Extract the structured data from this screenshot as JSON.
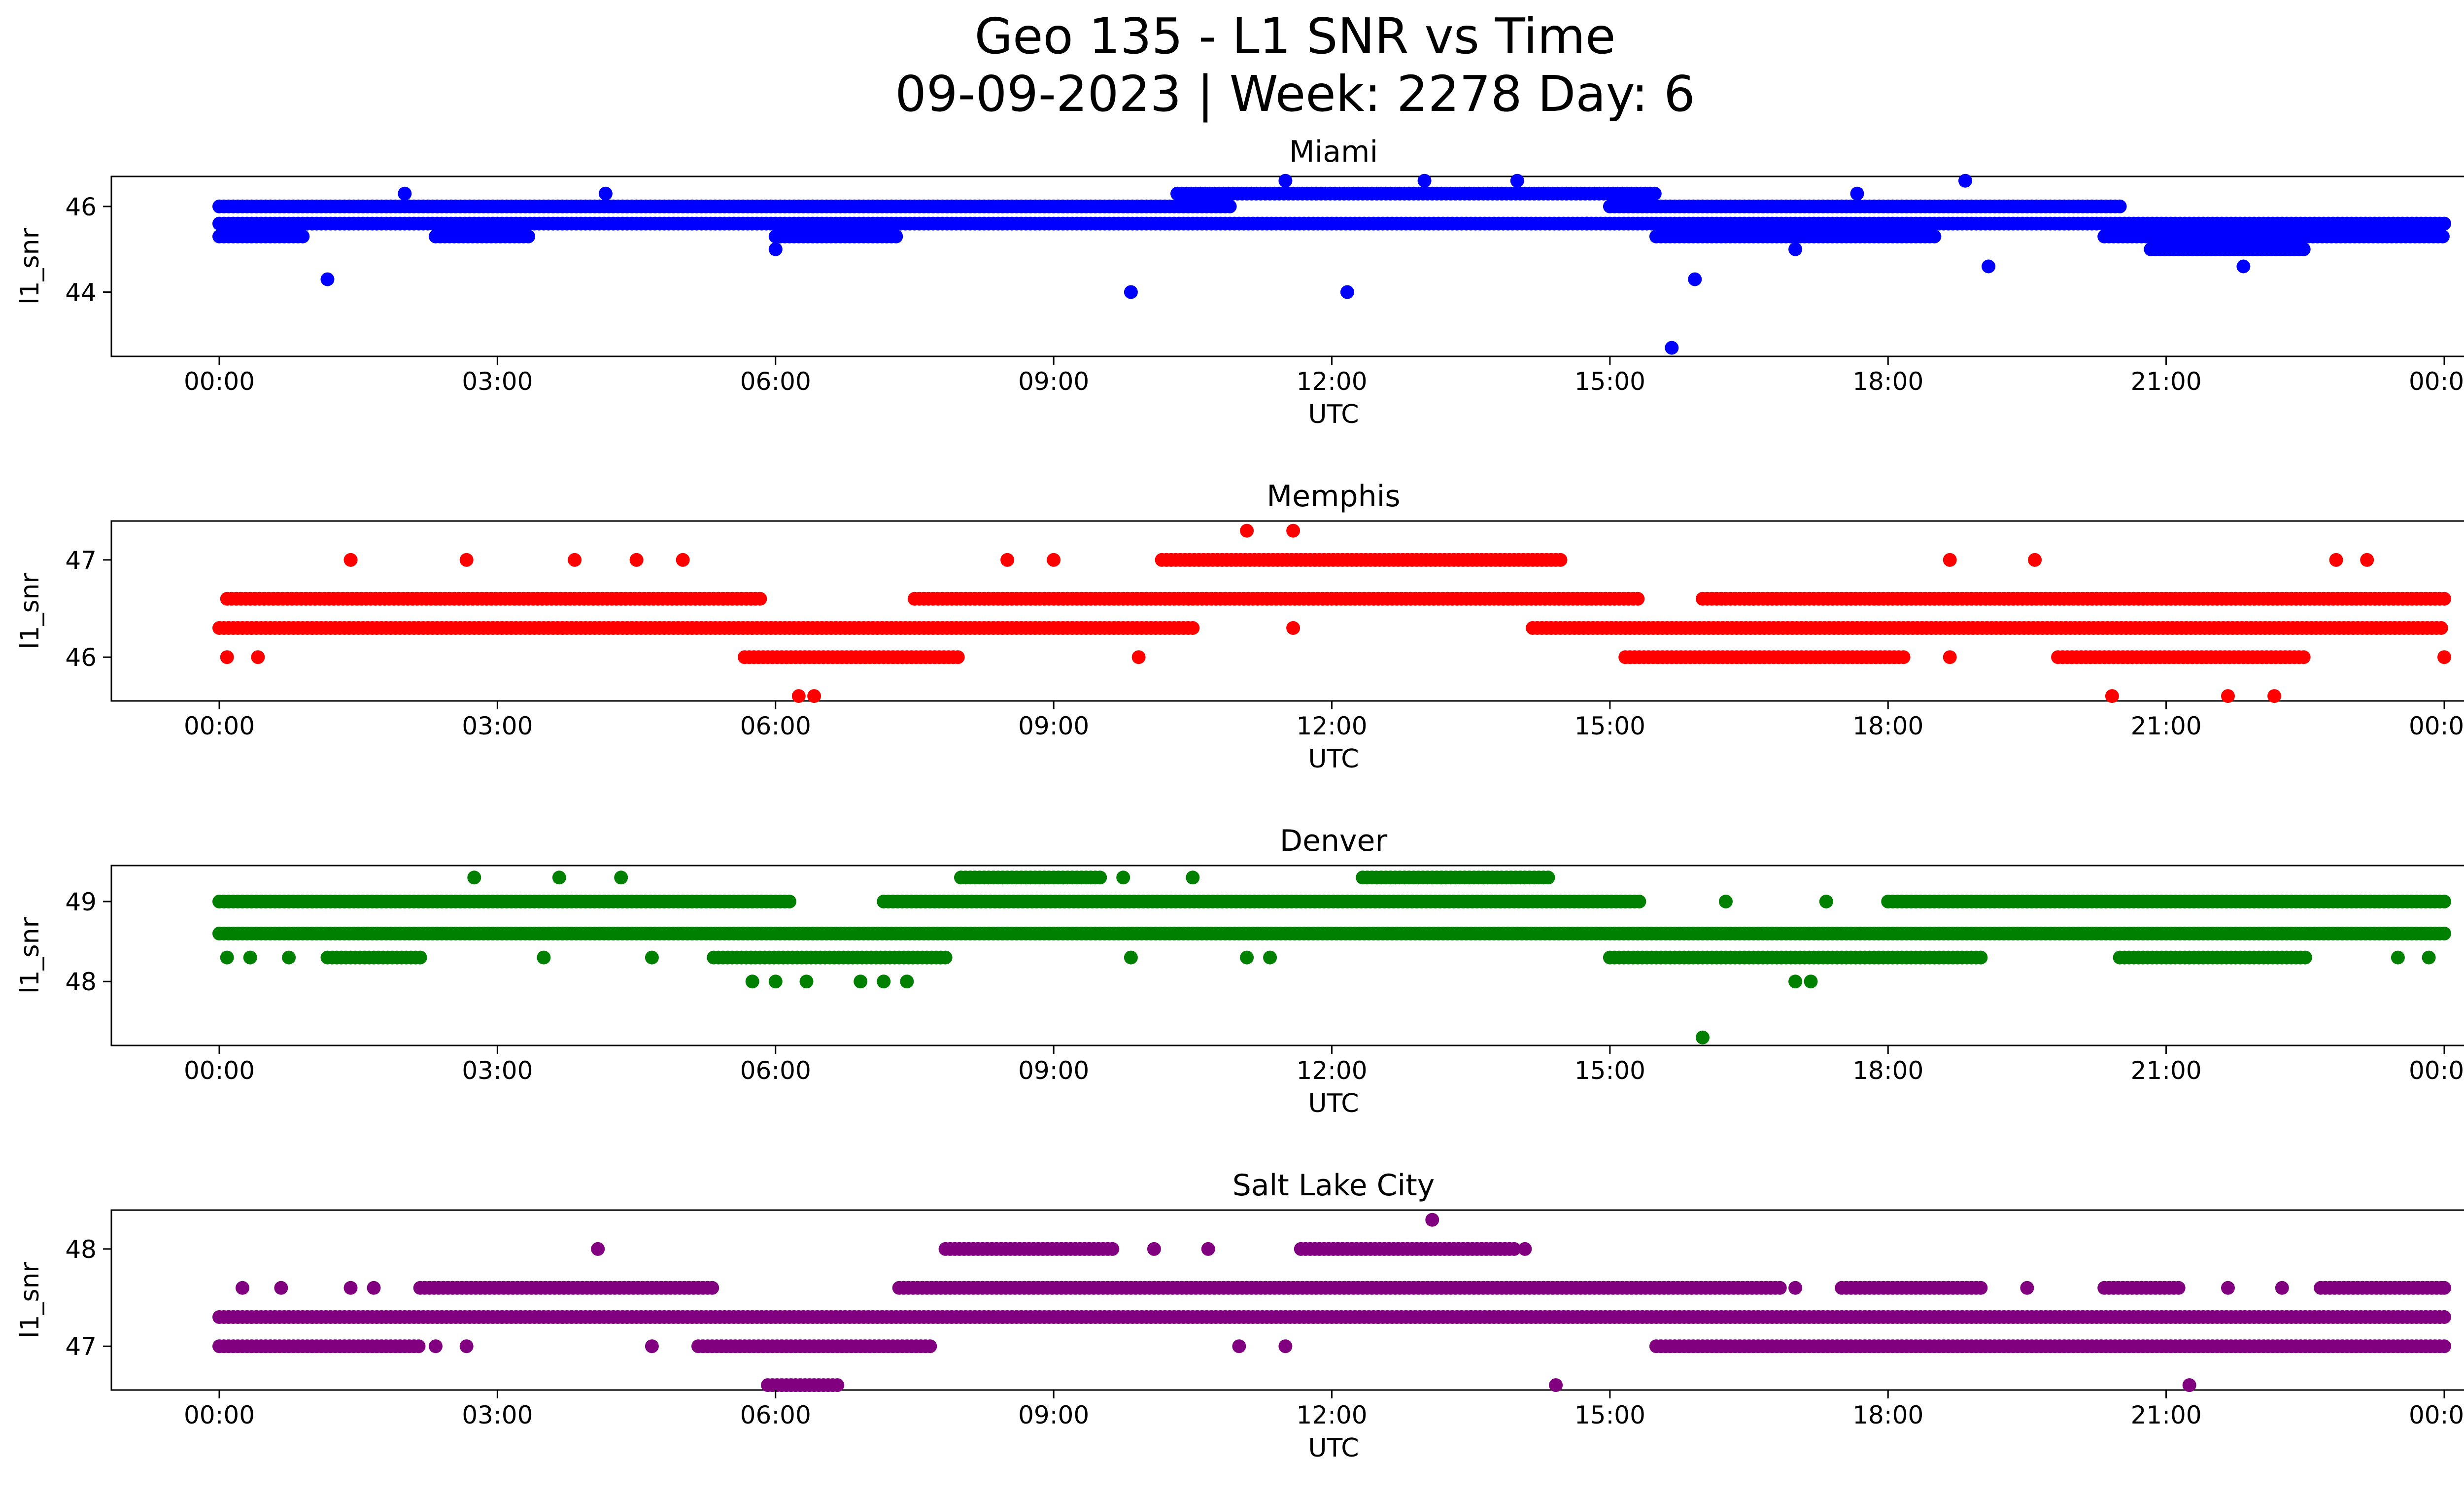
{
  "figure": {
    "title_line1": "Geo 135 - L1 SNR vs Time",
    "title_line2": "09-09-2023 | Week: 2278 Day: 6"
  },
  "chart_data": [
    {
      "type": "scatter",
      "title": "Miami",
      "xlabel": "UTC",
      "ylabel": "l1_snr",
      "color": "#0000ff",
      "xlim": [
        "00:00",
        "24:00"
      ],
      "ylim": [
        42.5,
        46.7
      ],
      "yticks": [
        44,
        46
      ],
      "xticks": [
        "00:00",
        "03:00",
        "06:00",
        "09:00",
        "12:00",
        "15:00",
        "18:00",
        "21:00",
        "00:00"
      ],
      "bands": [
        {
          "y": 45.6,
          "start": "00:00",
          "end": "24:00"
        },
        {
          "y": 46.0,
          "start": "00:00",
          "end": "10:55"
        },
        {
          "y": 46.0,
          "start": "15:00",
          "end": "20:30"
        },
        {
          "y": 46.3,
          "start": "10:20",
          "end": "15:30"
        },
        {
          "y": 45.3,
          "start": "00:00",
          "end": "00:55"
        },
        {
          "y": 45.3,
          "start": "02:20",
          "end": "03:20"
        },
        {
          "y": 45.3,
          "start": "06:00",
          "end": "07:20"
        },
        {
          "y": 45.3,
          "start": "15:30",
          "end": "18:30"
        },
        {
          "y": 45.3,
          "start": "20:20",
          "end": "24:00"
        },
        {
          "y": 45.0,
          "start": "20:50",
          "end": "22:30"
        }
      ],
      "points": [
        {
          "x": "01:10",
          "y": 44.3
        },
        {
          "x": "09:50",
          "y": 44.0
        },
        {
          "x": "12:10",
          "y": 44.0
        },
        {
          "x": "15:40",
          "y": 42.7
        },
        {
          "x": "15:55",
          "y": 44.3
        },
        {
          "x": "19:05",
          "y": 44.6
        },
        {
          "x": "21:50",
          "y": 44.6
        },
        {
          "x": "11:30",
          "y": 46.6
        },
        {
          "x": "13:00",
          "y": 46.6
        },
        {
          "x": "14:00",
          "y": 46.6
        },
        {
          "x": "18:50",
          "y": 46.6
        },
        {
          "x": "02:00",
          "y": 46.3
        },
        {
          "x": "04:10",
          "y": 46.3
        },
        {
          "x": "17:40",
          "y": 46.3
        },
        {
          "x": "06:00",
          "y": 45.0
        },
        {
          "x": "17:00",
          "y": 45.0
        },
        {
          "x": "14:45",
          "y": 45.6
        }
      ]
    },
    {
      "type": "scatter",
      "title": "Memphis",
      "xlabel": "UTC",
      "ylabel": "l1_snr",
      "color": "#ff0000",
      "xlim": [
        "00:00",
        "24:00"
      ],
      "ylim": [
        45.55,
        47.4
      ],
      "yticks": [
        46,
        47
      ],
      "xticks": [
        "00:00",
        "03:00",
        "06:00",
        "09:00",
        "12:00",
        "15:00",
        "18:00",
        "21:00",
        "00:00"
      ],
      "bands": [
        {
          "y": 46.3,
          "start": "00:00",
          "end": "10:30"
        },
        {
          "y": 46.3,
          "start": "14:10",
          "end": "24:00"
        },
        {
          "y": 46.6,
          "start": "00:05",
          "end": "05:50"
        },
        {
          "y": 46.6,
          "start": "07:30",
          "end": "15:20"
        },
        {
          "y": 46.6,
          "start": "16:00",
          "end": "24:00"
        },
        {
          "y": 47.0,
          "start": "10:10",
          "end": "14:30"
        },
        {
          "y": 46.0,
          "start": "05:40",
          "end": "08:00"
        },
        {
          "y": 46.0,
          "start": "15:10",
          "end": "18:10"
        },
        {
          "y": 46.0,
          "start": "19:50",
          "end": "22:30"
        }
      ],
      "points": [
        {
          "x": "00:05",
          "y": 46.0
        },
        {
          "x": "00:25",
          "y": 46.0
        },
        {
          "x": "01:25",
          "y": 47.0
        },
        {
          "x": "02:40",
          "y": 47.0
        },
        {
          "x": "03:50",
          "y": 47.0
        },
        {
          "x": "04:30",
          "y": 47.0
        },
        {
          "x": "05:00",
          "y": 47.0
        },
        {
          "x": "08:30",
          "y": 47.0
        },
        {
          "x": "09:00",
          "y": 47.0
        },
        {
          "x": "09:55",
          "y": 46.0
        },
        {
          "x": "11:05",
          "y": 47.3
        },
        {
          "x": "11:35",
          "y": 47.3
        },
        {
          "x": "11:35",
          "y": 46.3
        },
        {
          "x": "06:15",
          "y": 45.6
        },
        {
          "x": "06:25",
          "y": 45.6
        },
        {
          "x": "18:40",
          "y": 47.0
        },
        {
          "x": "19:35",
          "y": 47.0
        },
        {
          "x": "20:25",
          "y": 45.6
        },
        {
          "x": "21:40",
          "y": 45.6
        },
        {
          "x": "22:10",
          "y": 45.6
        },
        {
          "x": "22:50",
          "y": 47.0
        },
        {
          "x": "23:10",
          "y": 47.0
        },
        {
          "x": "24:00",
          "y": 46.0
        },
        {
          "x": "18:40",
          "y": 46.0
        }
      ]
    },
    {
      "type": "scatter",
      "title": "Denver",
      "xlabel": "UTC",
      "ylabel": "l1_snr",
      "color": "#008000",
      "xlim": [
        "00:00",
        "24:00"
      ],
      "ylim": [
        47.2,
        49.45
      ],
      "yticks": [
        48,
        49
      ],
      "xticks": [
        "00:00",
        "03:00",
        "06:00",
        "09:00",
        "12:00",
        "15:00",
        "18:00",
        "21:00",
        "00:00"
      ],
      "bands": [
        {
          "y": 48.6,
          "start": "00:00",
          "end": "24:00"
        },
        {
          "y": 49.0,
          "start": "00:00",
          "end": "06:10"
        },
        {
          "y": 49.0,
          "start": "07:10",
          "end": "15:20"
        },
        {
          "y": 49.0,
          "start": "18:00",
          "end": "24:00"
        },
        {
          "y": 49.3,
          "start": "08:00",
          "end": "09:30"
        },
        {
          "y": 49.3,
          "start": "12:20",
          "end": "14:20"
        },
        {
          "y": 48.3,
          "start": "05:20",
          "end": "07:50"
        },
        {
          "y": 48.3,
          "start": "15:00",
          "end": "19:00"
        },
        {
          "y": 48.3,
          "start": "01:10",
          "end": "02:10"
        },
        {
          "y": 48.3,
          "start": "20:30",
          "end": "22:30"
        }
      ],
      "points": [
        {
          "x": "00:05",
          "y": 48.3
        },
        {
          "x": "00:20",
          "y": 48.3
        },
        {
          "x": "00:45",
          "y": 48.3
        },
        {
          "x": "02:45",
          "y": 49.3
        },
        {
          "x": "03:40",
          "y": 49.3
        },
        {
          "x": "04:20",
          "y": 49.3
        },
        {
          "x": "03:30",
          "y": 48.3
        },
        {
          "x": "04:40",
          "y": 48.3
        },
        {
          "x": "05:45",
          "y": 48.0
        },
        {
          "x": "06:00",
          "y": 48.0
        },
        {
          "x": "06:20",
          "y": 48.0
        },
        {
          "x": "06:55",
          "y": 48.0
        },
        {
          "x": "07:10",
          "y": 48.0
        },
        {
          "x": "07:25",
          "y": 48.0
        },
        {
          "x": "09:50",
          "y": 48.3
        },
        {
          "x": "11:05",
          "y": 48.3
        },
        {
          "x": "11:20",
          "y": 48.3
        },
        {
          "x": "09:45",
          "y": 49.3
        },
        {
          "x": "10:30",
          "y": 49.3
        },
        {
          "x": "16:00",
          "y": 47.3
        },
        {
          "x": "17:00",
          "y": 48.0
        },
        {
          "x": "17:10",
          "y": 48.0
        },
        {
          "x": "16:15",
          "y": 49.0
        },
        {
          "x": "17:20",
          "y": 49.0
        },
        {
          "x": "23:30",
          "y": 48.3
        },
        {
          "x": "23:50",
          "y": 48.3
        }
      ]
    },
    {
      "type": "scatter",
      "title": "Salt Lake City",
      "xlabel": "UTC",
      "ylabel": "l1_snr",
      "color": "#800080",
      "xlim": [
        "00:00",
        "24:00"
      ],
      "ylim": [
        46.55,
        48.4
      ],
      "yticks": [
        47,
        48
      ],
      "xticks": [
        "00:00",
        "03:00",
        "06:00",
        "09:00",
        "12:00",
        "15:00",
        "18:00",
        "21:00",
        "00:00"
      ],
      "bands": [
        {
          "y": 47.3,
          "start": "00:00",
          "end": "24:00"
        },
        {
          "y": 47.0,
          "start": "00:00",
          "end": "02:10"
        },
        {
          "y": 47.0,
          "start": "05:10",
          "end": "07:40"
        },
        {
          "y": 47.0,
          "start": "15:30",
          "end": "24:00"
        },
        {
          "y": 47.6,
          "start": "02:10",
          "end": "05:20"
        },
        {
          "y": 47.6,
          "start": "07:20",
          "end": "16:50"
        },
        {
          "y": 47.6,
          "start": "17:30",
          "end": "19:00"
        },
        {
          "y": 47.6,
          "start": "20:20",
          "end": "21:10"
        },
        {
          "y": 47.6,
          "start": "22:40",
          "end": "24:00"
        },
        {
          "y": 48.0,
          "start": "07:50",
          "end": "09:40"
        },
        {
          "y": 48.0,
          "start": "11:40",
          "end": "14:00"
        },
        {
          "y": 46.6,
          "start": "05:55",
          "end": "06:40"
        }
      ],
      "points": [
        {
          "x": "00:15",
          "y": 47.6
        },
        {
          "x": "00:40",
          "y": 47.6
        },
        {
          "x": "01:25",
          "y": 47.6
        },
        {
          "x": "01:40",
          "y": 47.6
        },
        {
          "x": "02:40",
          "y": 47.0
        },
        {
          "x": "02:20",
          "y": 47.0
        },
        {
          "x": "04:05",
          "y": 48.0
        },
        {
          "x": "04:40",
          "y": 47.0
        },
        {
          "x": "10:05",
          "y": 48.0
        },
        {
          "x": "10:40",
          "y": 48.0
        },
        {
          "x": "11:00",
          "y": 47.0
        },
        {
          "x": "11:30",
          "y": 47.0
        },
        {
          "x": "13:05",
          "y": 48.3
        },
        {
          "x": "14:05",
          "y": 48.0
        },
        {
          "x": "14:25",
          "y": 46.6
        },
        {
          "x": "12:30",
          "y": 47.3
        },
        {
          "x": "13:30",
          "y": 47.3
        },
        {
          "x": "21:15",
          "y": 46.6
        },
        {
          "x": "17:00",
          "y": 47.6
        },
        {
          "x": "19:30",
          "y": 47.6
        },
        {
          "x": "21:40",
          "y": 47.6
        },
        {
          "x": "22:15",
          "y": 47.6
        },
        {
          "x": "24:00",
          "y": 47.6
        }
      ]
    }
  ]
}
